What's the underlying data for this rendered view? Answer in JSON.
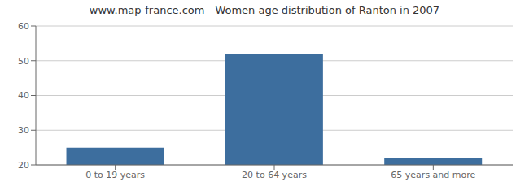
{
  "chart_data": {
    "type": "bar",
    "title": "www.map-france.com - Women age distribution of Ranton in 2007",
    "categories": [
      "0 to 19 years",
      "20 to 64 years",
      "65 years and more"
    ],
    "values": [
      25,
      52,
      22
    ],
    "color": "#3d6e9e",
    "ylim": [
      20,
      60
    ],
    "yticks": [
      20,
      30,
      40,
      50,
      60
    ],
    "grid": true
  }
}
